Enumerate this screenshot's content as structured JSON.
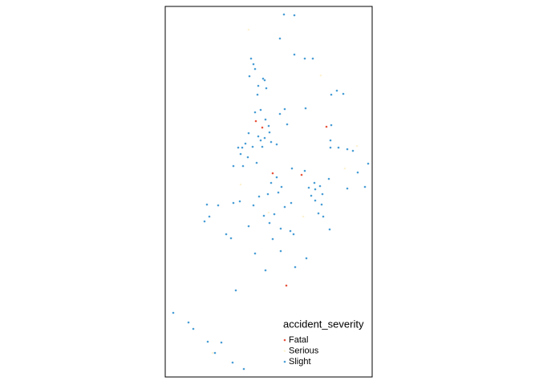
{
  "chart_data": {
    "type": "scatter",
    "legend_title": "accident_severity",
    "legend_position": "bottom-right",
    "xlim": [
      0,
      258
    ],
    "ylim": [
      0,
      462
    ],
    "series": [
      {
        "name": "Fatal",
        "color": "#e8553d",
        "x": [
          113,
          121,
          134,
          170,
          201,
          151
        ],
        "values": [
          319,
          311,
          254,
          252,
          312,
          114
        ]
      },
      {
        "name": "Serious",
        "color": "#fdf3d4",
        "x": [
          104,
          194,
          239,
          129,
          172,
          224,
          94,
          59
        ],
        "values": [
          433,
          376,
          288,
          205,
          200,
          260,
          240,
          30
        ]
      },
      {
        "name": "Slight",
        "color": "#4a9ed6",
        "x": [
          148,
          161,
          143,
          161,
          184,
          174,
          107,
          110,
          112,
          105,
          122,
          124,
          116,
          126,
          115,
          207,
          214,
          222,
          119,
          149,
          112,
          125,
          143,
          152,
          175,
          207,
          129,
          130,
          104,
          116,
          124,
          119,
          100,
          109,
          96,
          91,
          121,
          132,
          139,
          94,
          206,
          206,
          216,
          227,
          234,
          103,
          114,
          97,
          85,
          158,
          139,
          174,
          186,
          179,
          193,
          187,
          196,
          182,
          204,
          227,
          249,
          253,
          240,
          132,
          145,
          141,
          128,
          117,
          85,
          93,
          52,
          66,
          110,
          149,
          123,
          136,
          157,
          187,
          195,
          191,
          197,
          55,
          49,
          130,
          144,
          156,
          160,
          104,
          76,
          82,
          134,
          205,
          112,
          144,
          176,
          162,
          125,
          88,
          10,
          29,
          35,
          53,
          70,
          62,
          84,
          98
        ],
        "values": [
          452,
          451,
          422,
          402,
          397,
          397,
          397,
          390,
          384,
          375,
          372,
          370,
          363,
          360,
          352,
          352,
          357,
          353,
          333,
          334,
          330,
          321,
          328,
          315,
          335,
          314,
          313,
          305,
          304,
          300,
          298,
          295,
          291,
          287,
          286,
          286,
          287,
          293,
          290,
          278,
          295,
          286,
          286,
          284,
          282,
          274,
          267,
          263,
          263,
          260,
          249,
          257,
          242,
          236,
          238,
          234,
          228,
          226,
          247,
          235,
          237,
          266,
          255,
          242,
          237,
          230,
          228,
          225,
          217,
          219,
          215,
          214,
          214,
          212,
          201,
          203,
          217,
          220,
          215,
          204,
          200,
          200,
          194,
          192,
          185,
          182,
          178,
          188,
          178,
          173,
          172,
          184,
          154,
          157,
          148,
          137,
          133,
          108,
          80,
          68,
          60,
          44,
          43,
          30,
          18,
          10
        ]
      }
    ]
  }
}
